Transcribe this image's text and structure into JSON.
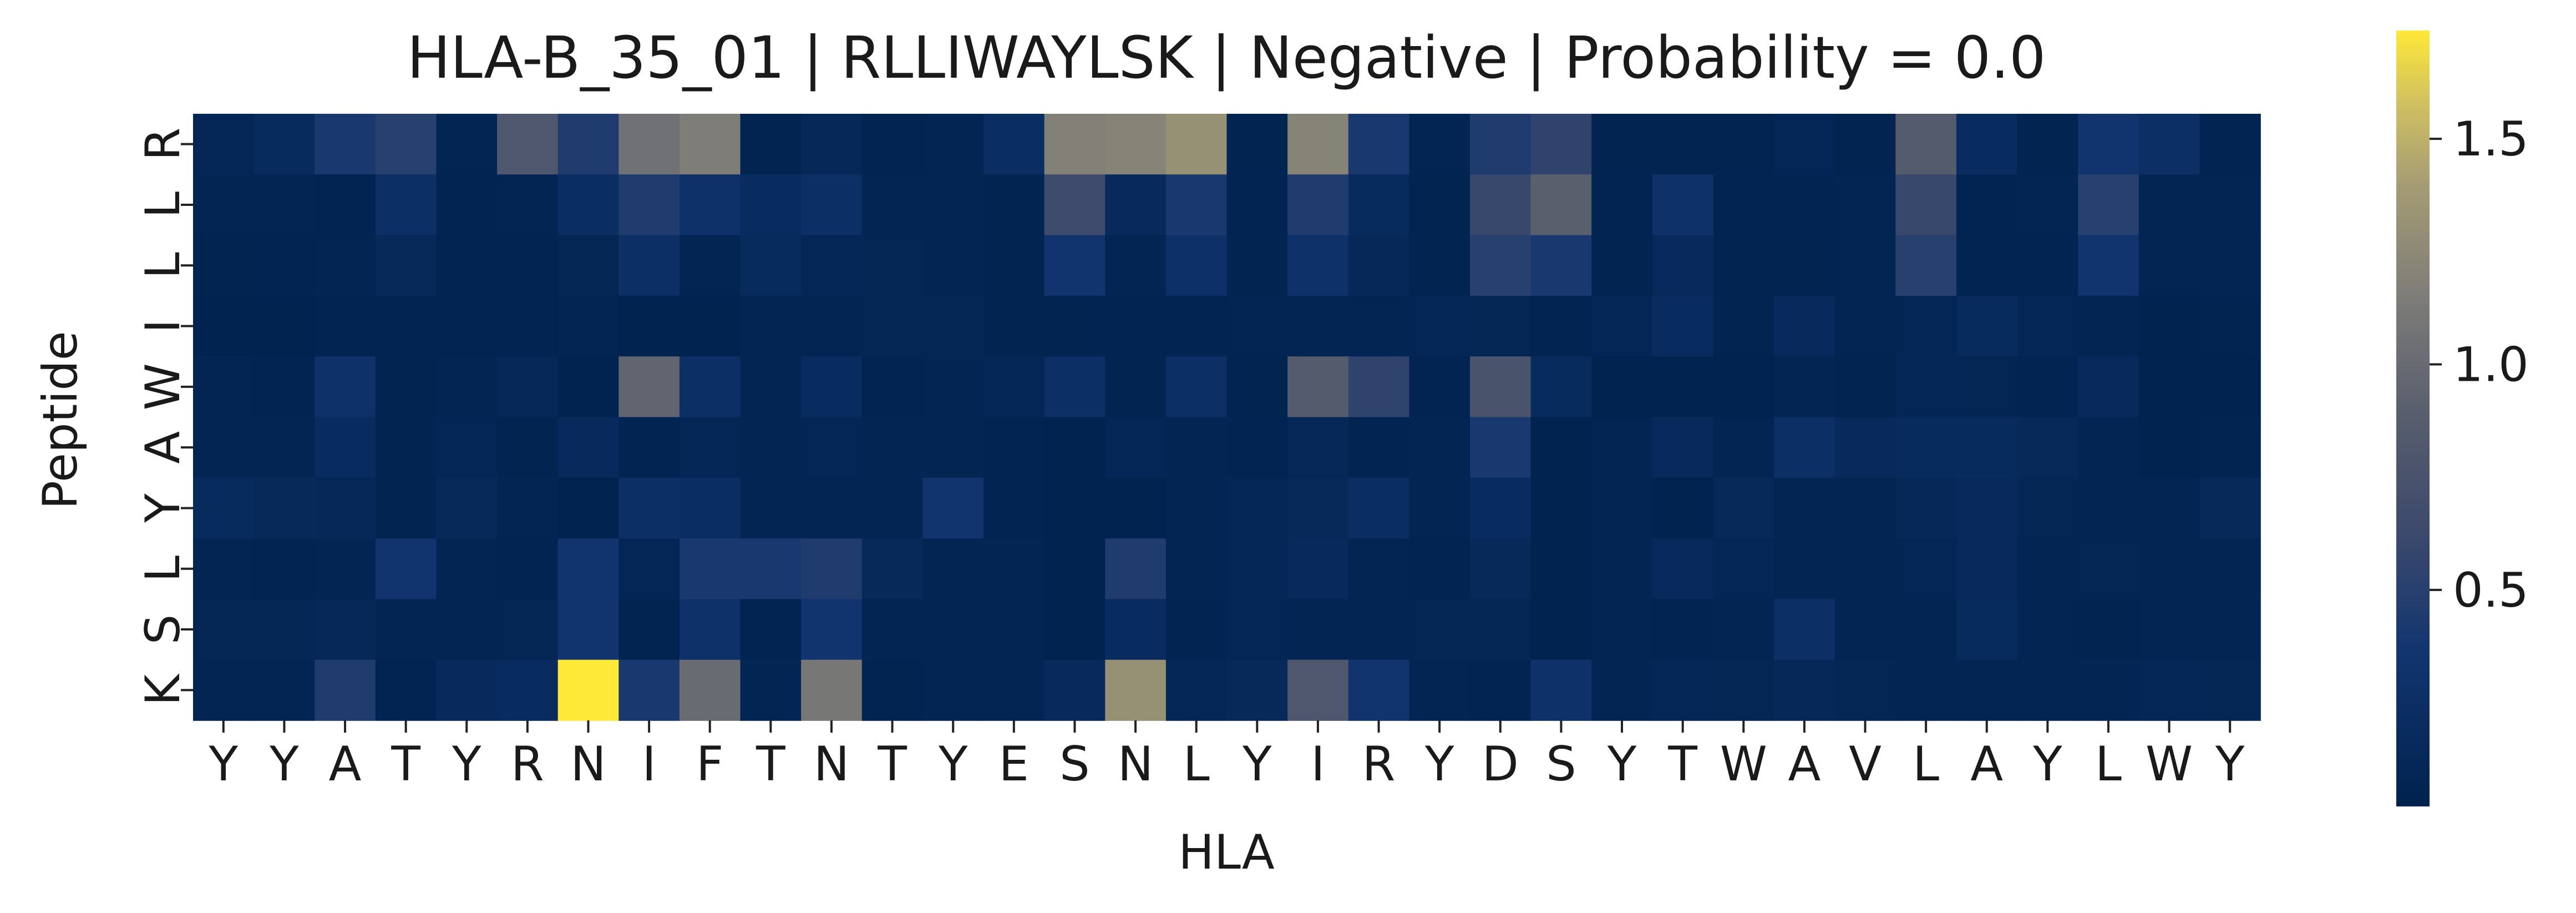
{
  "chart_data": {
    "type": "heatmap",
    "title": "HLA-B_35_01 | RLLIWAYLSK | Negative | Probability = 0.0",
    "xlabel": "HLA",
    "ylabel": "Peptide",
    "x_tick_labels": [
      "Y",
      "Y",
      "A",
      "T",
      "Y",
      "R",
      "N",
      "I",
      "F",
      "T",
      "N",
      "T",
      "Y",
      "E",
      "S",
      "N",
      "L",
      "Y",
      "I",
      "R",
      "Y",
      "D",
      "S",
      "Y",
      "T",
      "W",
      "A",
      "V",
      "L",
      "A",
      "Y",
      "L",
      "W",
      "Y"
    ],
    "y_tick_labels": [
      "R",
      "L",
      "L",
      "I",
      "W",
      "A",
      "Y",
      "L",
      "S",
      "K"
    ],
    "colormap": "cividis",
    "colorbar": {
      "range": [
        0.02,
        1.74
      ],
      "ticks": [
        0.5,
        1.0,
        1.5
      ],
      "tick_labels": [
        "0.5",
        "1.0",
        "1.5"
      ]
    },
    "values": [
      [
        0.1,
        0.18,
        0.4,
        0.5,
        0.08,
        0.8,
        0.45,
        1.05,
        1.15,
        0.05,
        0.12,
        0.06,
        0.08,
        0.22,
        1.18,
        1.2,
        1.3,
        0.05,
        1.2,
        0.4,
        0.08,
        0.45,
        0.55,
        0.05,
        0.05,
        0.05,
        0.1,
        0.05,
        0.85,
        0.2,
        0.05,
        0.35,
        0.25,
        0.06
      ],
      [
        0.08,
        0.08,
        0.06,
        0.25,
        0.06,
        0.07,
        0.22,
        0.45,
        0.3,
        0.2,
        0.25,
        0.08,
        0.08,
        0.05,
        0.65,
        0.15,
        0.4,
        0.06,
        0.45,
        0.18,
        0.05,
        0.6,
        0.9,
        0.06,
        0.3,
        0.06,
        0.06,
        0.08,
        0.6,
        0.06,
        0.08,
        0.5,
        0.08,
        0.08
      ],
      [
        0.05,
        0.06,
        0.07,
        0.14,
        0.06,
        0.06,
        0.09,
        0.25,
        0.07,
        0.18,
        0.1,
        0.09,
        0.07,
        0.05,
        0.35,
        0.08,
        0.28,
        0.05,
        0.3,
        0.12,
        0.05,
        0.5,
        0.4,
        0.05,
        0.15,
        0.05,
        0.05,
        0.07,
        0.5,
        0.06,
        0.06,
        0.35,
        0.07,
        0.07
      ],
      [
        0.04,
        0.04,
        0.06,
        0.06,
        0.06,
        0.06,
        0.07,
        0.04,
        0.04,
        0.07,
        0.08,
        0.09,
        0.09,
        0.05,
        0.05,
        0.06,
        0.06,
        0.08,
        0.08,
        0.08,
        0.1,
        0.09,
        0.06,
        0.1,
        0.2,
        0.05,
        0.15,
        0.07,
        0.1,
        0.18,
        0.1,
        0.07,
        0.04,
        0.05
      ],
      [
        0.07,
        0.06,
        0.3,
        0.05,
        0.07,
        0.12,
        0.04,
        0.95,
        0.25,
        0.08,
        0.2,
        0.06,
        0.08,
        0.1,
        0.25,
        0.05,
        0.25,
        0.05,
        0.85,
        0.55,
        0.06,
        0.75,
        0.18,
        0.04,
        0.04,
        0.04,
        0.07,
        0.05,
        0.1,
        0.09,
        0.06,
        0.15,
        0.04,
        0.04
      ],
      [
        0.07,
        0.08,
        0.2,
        0.05,
        0.1,
        0.05,
        0.15,
        0.06,
        0.1,
        0.07,
        0.1,
        0.07,
        0.07,
        0.06,
        0.04,
        0.1,
        0.08,
        0.06,
        0.12,
        0.06,
        0.08,
        0.4,
        0.03,
        0.07,
        0.15,
        0.07,
        0.25,
        0.15,
        0.18,
        0.18,
        0.14,
        0.07,
        0.04,
        0.05
      ],
      [
        0.18,
        0.14,
        0.12,
        0.05,
        0.14,
        0.08,
        0.04,
        0.25,
        0.22,
        0.07,
        0.07,
        0.07,
        0.35,
        0.06,
        0.04,
        0.04,
        0.08,
        0.1,
        0.14,
        0.22,
        0.08,
        0.2,
        0.03,
        0.07,
        0.03,
        0.14,
        0.08,
        0.08,
        0.12,
        0.15,
        0.09,
        0.08,
        0.07,
        0.14
      ],
      [
        0.07,
        0.06,
        0.08,
        0.35,
        0.07,
        0.06,
        0.35,
        0.1,
        0.4,
        0.4,
        0.45,
        0.14,
        0.08,
        0.08,
        0.03,
        0.45,
        0.07,
        0.1,
        0.15,
        0.08,
        0.06,
        0.14,
        0.03,
        0.07,
        0.15,
        0.1,
        0.08,
        0.08,
        0.1,
        0.15,
        0.08,
        0.09,
        0.08,
        0.07
      ],
      [
        0.09,
        0.09,
        0.13,
        0.07,
        0.08,
        0.09,
        0.35,
        0.05,
        0.3,
        0.06,
        0.35,
        0.07,
        0.07,
        0.07,
        0.04,
        0.2,
        0.06,
        0.1,
        0.08,
        0.08,
        0.09,
        0.09,
        0.03,
        0.07,
        0.06,
        0.07,
        0.25,
        0.07,
        0.07,
        0.18,
        0.08,
        0.05,
        0.07,
        0.08
      ],
      [
        0.08,
        0.07,
        0.45,
        0.06,
        0.15,
        0.2,
        1.74,
        0.4,
        1.0,
        0.07,
        1.1,
        0.05,
        0.07,
        0.08,
        0.15,
        1.3,
        0.1,
        0.14,
        0.8,
        0.35,
        0.08,
        0.06,
        0.3,
        0.07,
        0.1,
        0.09,
        0.12,
        0.09,
        0.07,
        0.07,
        0.08,
        0.08,
        0.1,
        0.09
      ]
    ]
  }
}
